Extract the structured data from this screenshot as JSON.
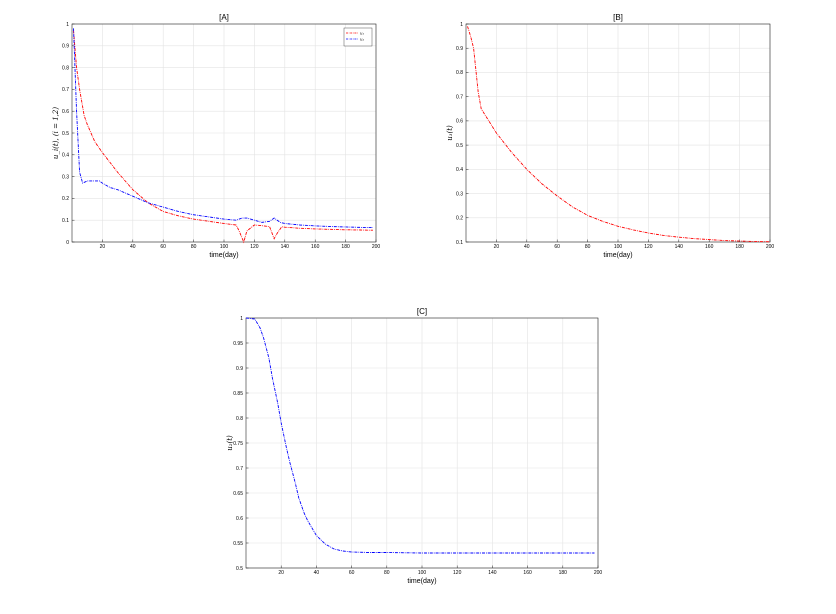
{
  "chart_data": [
    {
      "id": "A",
      "type": "line",
      "title": "[A]",
      "xlabel": "time(day)",
      "ylabel": "u_i(t), (i = 1,2)",
      "xlim": [
        0,
        200
      ],
      "ylim": [
        0,
        1
      ],
      "xticks": [
        20,
        40,
        60,
        80,
        100,
        120,
        140,
        160,
        180,
        200
      ],
      "xtick_labels": [
        "20",
        "40",
        "60",
        "80",
        "100",
        "120",
        "140",
        "160",
        "180",
        "200"
      ],
      "yticks": [
        0,
        0.1,
        0.2,
        0.3,
        0.4,
        0.5,
        0.6,
        0.7,
        0.8,
        0.9,
        1
      ],
      "ytick_labels": [
        "0",
        "0.1",
        "0.2",
        "0.3",
        "0.4",
        "0.5",
        "0.6",
        "0.7",
        "0.8",
        "0.9",
        "1"
      ],
      "grid": true,
      "legend_position": "top-right",
      "series": [
        {
          "name": "u₁",
          "color": "#ff0000",
          "x": [
            1,
            3,
            5,
            8,
            10,
            15,
            20,
            30,
            40,
            50,
            60,
            70,
            80,
            90,
            100,
            108,
            110,
            113,
            115,
            120,
            125,
            130,
            133,
            135,
            138,
            140,
            150,
            160,
            170,
            180,
            190,
            198
          ],
          "y": [
            0.97,
            0.8,
            0.7,
            0.58,
            0.54,
            0.46,
            0.41,
            0.32,
            0.24,
            0.18,
            0.14,
            0.12,
            0.105,
            0.095,
            0.085,
            0.078,
            0.05,
            0.0,
            0.05,
            0.078,
            0.075,
            0.07,
            0.015,
            0.04,
            0.07,
            0.068,
            0.063,
            0.06,
            0.058,
            0.056,
            0.055,
            0.054
          ]
        },
        {
          "name": "u₂",
          "color": "#0000ff",
          "x": [
            1,
            3,
            5,
            7,
            10,
            15,
            18,
            20,
            25,
            30,
            40,
            50,
            60,
            70,
            80,
            90,
            100,
            108,
            112,
            115,
            120,
            125,
            130,
            133,
            137,
            140,
            150,
            160,
            170,
            180,
            190,
            198
          ],
          "y": [
            0.98,
            0.6,
            0.32,
            0.27,
            0.28,
            0.28,
            0.28,
            0.27,
            0.25,
            0.24,
            0.21,
            0.18,
            0.16,
            0.14,
            0.125,
            0.115,
            0.105,
            0.1,
            0.11,
            0.11,
            0.1,
            0.09,
            0.095,
            0.11,
            0.09,
            0.085,
            0.078,
            0.074,
            0.071,
            0.069,
            0.067,
            0.066
          ]
        }
      ]
    },
    {
      "id": "B",
      "type": "line",
      "title": "[B]",
      "xlabel": "time(day)",
      "ylabel": "u₁(t)",
      "xlim": [
        0,
        200
      ],
      "ylim": [
        0.1,
        1
      ],
      "xticks": [
        20,
        40,
        60,
        80,
        100,
        120,
        140,
        160,
        180,
        200
      ],
      "xtick_labels": [
        "20",
        "40",
        "60",
        "80",
        "100",
        "120",
        "140",
        "160",
        "180",
        "200"
      ],
      "yticks": [
        0.1,
        0.2,
        0.3,
        0.4,
        0.5,
        0.6,
        0.7,
        0.8,
        0.9,
        1
      ],
      "ytick_labels": [
        "0.1",
        "0.2",
        "0.3",
        "0.4",
        "0.5",
        "0.6",
        "0.7",
        "0.8",
        "0.9",
        "1"
      ],
      "grid": true,
      "series": [
        {
          "color": "#ff0000",
          "x": [
            1,
            3,
            5,
            8,
            10,
            15,
            20,
            30,
            40,
            50,
            60,
            70,
            80,
            90,
            100,
            110,
            120,
            130,
            140,
            150,
            160,
            170,
            180,
            190,
            200
          ],
          "y": [
            0.99,
            0.95,
            0.9,
            0.72,
            0.65,
            0.6,
            0.55,
            0.47,
            0.4,
            0.34,
            0.29,
            0.245,
            0.21,
            0.185,
            0.165,
            0.15,
            0.137,
            0.127,
            0.12,
            0.114,
            0.11,
            0.106,
            0.104,
            0.102,
            0.101
          ]
        }
      ]
    },
    {
      "id": "C",
      "type": "line",
      "title": "[C]",
      "xlabel": "time(day)",
      "ylabel": "u₂(t)",
      "xlim": [
        0,
        200
      ],
      "ylim": [
        0.5,
        1
      ],
      "xticks": [
        20,
        40,
        60,
        80,
        100,
        120,
        140,
        160,
        180,
        200
      ],
      "xtick_labels": [
        "20",
        "40",
        "60",
        "80",
        "100",
        "120",
        "140",
        "160",
        "180",
        "200"
      ],
      "yticks": [
        0.5,
        0.55,
        0.6,
        0.65,
        0.7,
        0.75,
        0.8,
        0.85,
        0.9,
        0.95,
        1
      ],
      "ytick_labels": [
        "0.5",
        "0.55",
        "0.6",
        "0.65",
        "0.7",
        "0.75",
        "0.8",
        "0.85",
        "0.9",
        "0.95",
        "1"
      ],
      "grid": true,
      "series": [
        {
          "color": "#0000ff",
          "x": [
            0,
            5,
            8,
            10,
            13,
            15,
            18,
            20,
            23,
            25,
            28,
            30,
            33,
            35,
            40,
            45,
            50,
            55,
            60,
            70,
            80,
            100,
            120,
            140,
            160,
            180,
            198
          ],
          "y": [
            1.0,
            0.998,
            0.98,
            0.96,
            0.92,
            0.88,
            0.83,
            0.79,
            0.74,
            0.71,
            0.67,
            0.64,
            0.61,
            0.595,
            0.565,
            0.548,
            0.538,
            0.534,
            0.532,
            0.531,
            0.531,
            0.53,
            0.53,
            0.53,
            0.53,
            0.53,
            0.53
          ]
        }
      ]
    }
  ]
}
